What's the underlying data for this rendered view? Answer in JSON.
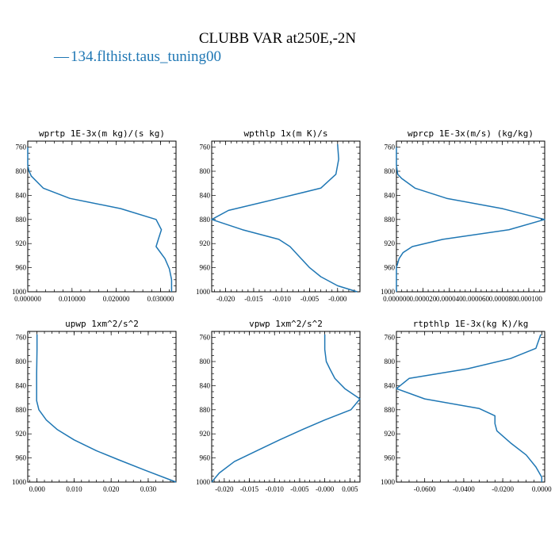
{
  "figure": {
    "title": "CLUBB VAR at250E,-2N",
    "legend": {
      "dash": "—",
      "label": "134.flthist.taus_tuning00",
      "color": "#1f77b4"
    }
  },
  "chart_data": [
    {
      "type": "line",
      "title": "wprtp   1E-3x(m kg)/(s kg)",
      "xlim": [
        0.0,
        0.0335
      ],
      "ylim": [
        1000,
        750
      ],
      "xticks": [
        0.0,
        0.01,
        0.02,
        0.03
      ],
      "xticklabels": [
        "0.000000",
        "0.010000",
        "0.020000",
        "0.030000"
      ],
      "yticks": [
        760,
        800,
        840,
        880,
        920,
        960,
        1000
      ],
      "series": [
        {
          "color": "#1f77b4",
          "points": [
            [
              0.0,
              760
            ],
            [
              0.0,
              790
            ],
            [
              0.0003,
              800
            ],
            [
              0.0008,
              808
            ],
            [
              0.0035,
              828
            ],
            [
              0.0095,
              845
            ],
            [
              0.021,
              862
            ],
            [
              0.029,
              880
            ],
            [
              0.0302,
              897
            ],
            [
              0.0295,
              913
            ],
            [
              0.029,
              925
            ],
            [
              0.031,
              945
            ],
            [
              0.032,
              962
            ],
            [
              0.0325,
              980
            ],
            [
              0.0325,
              1000
            ]
          ]
        }
      ]
    },
    {
      "type": "line",
      "title": "wpthlp   1x(m K)/s",
      "xlim": [
        -0.0225,
        0.004
      ],
      "ylim": [
        1000,
        750
      ],
      "xticks": [
        -0.02,
        -0.015,
        -0.01,
        -0.005,
        0.0
      ],
      "xticklabels": [
        "-0.020",
        "-0.015",
        "-0.010",
        "-0.005",
        "-0.000"
      ],
      "yticks": [
        760,
        800,
        840,
        880,
        920,
        960,
        1000
      ],
      "series": [
        {
          "color": "#1f77b4",
          "points": [
            [
              0.0,
              755
            ],
            [
              0.0002,
              780
            ],
            [
              -0.0003,
              805
            ],
            [
              -0.003,
              828
            ],
            [
              -0.0105,
              845
            ],
            [
              -0.0195,
              865
            ],
            [
              -0.0225,
              880
            ],
            [
              -0.017,
              897
            ],
            [
              -0.0105,
              913
            ],
            [
              -0.0085,
              925
            ],
            [
              -0.0065,
              945
            ],
            [
              -0.005,
              960
            ],
            [
              -0.003,
              975
            ],
            [
              0.0,
              990
            ],
            [
              0.0035,
              1000
            ]
          ]
        }
      ]
    },
    {
      "type": "line",
      "title": "wprcp   1E-3x(m/s) (kg/kg)",
      "xlim": [
        0.0,
        0.000112
      ],
      "ylim": [
        1000,
        750
      ],
      "xticks": [
        0.0,
        2e-05,
        4e-05,
        6e-05,
        8e-05,
        0.0001
      ],
      "xticklabels": [
        "0.000000",
        "0.000020",
        "0.000040",
        "0.000060",
        "0.000080",
        "0.000100"
      ],
      "yticks": [
        760,
        800,
        840,
        880,
        920,
        960,
        1000
      ],
      "series": [
        {
          "color": "#1f77b4",
          "points": [
            [
              0.0,
              760
            ],
            [
              0.0,
              790
            ],
            [
              1e-06,
              805
            ],
            [
              4e-06,
              812
            ],
            [
              1.4e-05,
              828
            ],
            [
              3.8e-05,
              845
            ],
            [
              8e-05,
              862
            ],
            [
              0.000112,
              880
            ],
            [
              8.5e-05,
              897
            ],
            [
              3.5e-05,
              913
            ],
            [
              1.2e-05,
              925
            ],
            [
              5e-06,
              935
            ],
            [
              2e-06,
              945
            ],
            [
              0.0,
              960
            ],
            [
              0.0,
              1000
            ]
          ]
        }
      ]
    },
    {
      "type": "line",
      "title": "upwp   1xm^2/s^2",
      "xlim": [
        -0.0025,
        0.0375
      ],
      "ylim": [
        1000,
        750
      ],
      "xticks": [
        0.0,
        0.01,
        0.02,
        0.03
      ],
      "xticklabels": [
        "0.000",
        "0.010",
        "0.020",
        "0.030"
      ],
      "yticks": [
        760,
        800,
        840,
        880,
        920,
        960,
        1000
      ],
      "series": [
        {
          "color": "#1f77b4",
          "points": [
            [
              0.0,
              755
            ],
            [
              0.0,
              780
            ],
            [
              -0.0001,
              820
            ],
            [
              -0.0001,
              865
            ],
            [
              0.0005,
              880
            ],
            [
              0.0025,
              897
            ],
            [
              0.0055,
              913
            ],
            [
              0.01,
              930
            ],
            [
              0.016,
              948
            ],
            [
              0.022,
              963
            ],
            [
              0.029,
              980
            ],
            [
              0.0375,
              1000
            ]
          ]
        }
      ]
    },
    {
      "type": "line",
      "title": "vpwp   1xm^2/s^2",
      "xlim": [
        -0.0225,
        0.007
      ],
      "ylim": [
        1000,
        750
      ],
      "xticks": [
        -0.02,
        -0.015,
        -0.01,
        -0.005,
        0.0,
        0.005
      ],
      "xticklabels": [
        "-0.020",
        "-0.015",
        "-0.010",
        "-0.005",
        "-0.000",
        "0.005"
      ],
      "yticks": [
        760,
        800,
        840,
        880,
        920,
        960,
        1000
      ],
      "series": [
        {
          "color": "#1f77b4",
          "points": [
            [
              0.0,
              755
            ],
            [
              0.0,
              780
            ],
            [
              0.0003,
              800
            ],
            [
              0.001,
              812
            ],
            [
              0.002,
              828
            ],
            [
              0.004,
              845
            ],
            [
              0.007,
              862
            ],
            [
              0.0052,
              880
            ],
            [
              0.0,
              897
            ],
            [
              -0.0045,
              913
            ],
            [
              -0.009,
              930
            ],
            [
              -0.0135,
              948
            ],
            [
              -0.018,
              966
            ],
            [
              -0.021,
              985
            ],
            [
              -0.0225,
              1000
            ]
          ]
        }
      ]
    },
    {
      "type": "line",
      "title": "rtpthlp   1E-3x(kg K)/kg",
      "xlim": [
        -0.0745,
        0.0015
      ],
      "ylim": [
        1000,
        750
      ],
      "xticks": [
        -0.06,
        -0.04,
        -0.02,
        0.0
      ],
      "xticklabels": [
        "-0.0600",
        "-0.0400",
        "-0.0200",
        "0.0000"
      ],
      "yticks": [
        760,
        800,
        840,
        880,
        920,
        960,
        1000
      ],
      "series": [
        {
          "color": "#1f77b4",
          "points": [
            [
              -0.0005,
              755
            ],
            [
              -0.003,
              778
            ],
            [
              -0.016,
              795
            ],
            [
              -0.038,
              812
            ],
            [
              -0.068,
              828
            ],
            [
              -0.0745,
              845
            ],
            [
              -0.06,
              862
            ],
            [
              -0.032,
              878
            ],
            [
              -0.024,
              890
            ],
            [
              -0.024,
              903
            ],
            [
              -0.023,
              915
            ],
            [
              -0.016,
              935
            ],
            [
              -0.008,
              955
            ],
            [
              -0.003,
              975
            ],
            [
              0.0,
              992
            ],
            [
              0.0,
              1000
            ]
          ]
        }
      ]
    }
  ]
}
